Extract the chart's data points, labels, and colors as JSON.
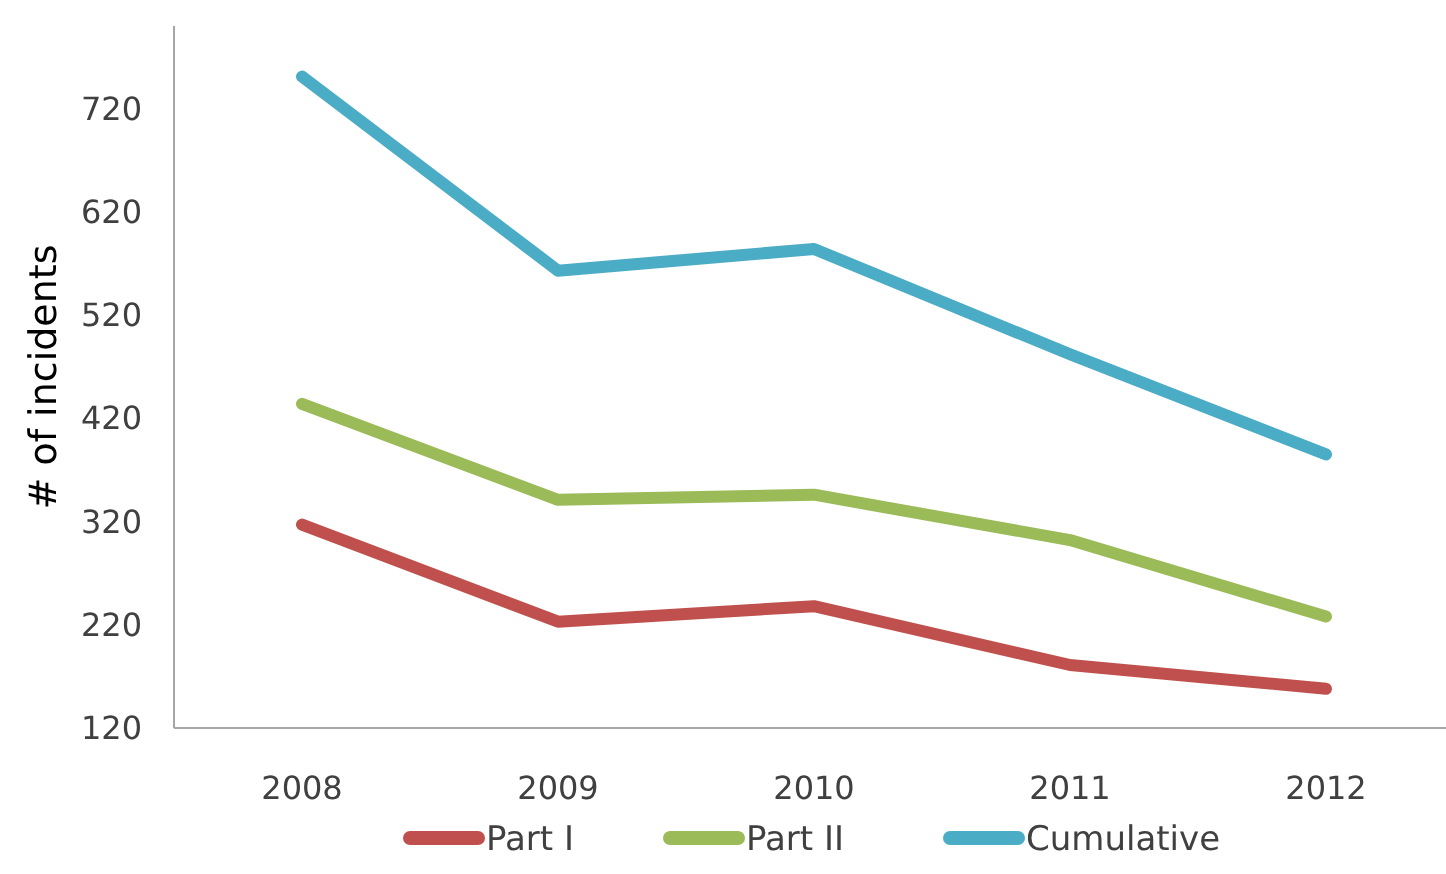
{
  "chart_data": {
    "type": "line",
    "ylabel": "# of incidents",
    "categories": [
      "2008",
      "2009",
      "2010",
      "2011",
      "2012"
    ],
    "series": [
      {
        "name": "Part I",
        "color": "#c0504d",
        "values": [
          317,
          223,
          238,
          181,
          158
        ]
      },
      {
        "name": "Part II",
        "color": "#9bbb59",
        "values": [
          434,
          341,
          346,
          302,
          228
        ]
      },
      {
        "name": "Cumulative",
        "color": "#4bacc6",
        "values": [
          751,
          563,
          584,
          482,
          385
        ]
      }
    ],
    "ylim": [
      120,
      800
    ],
    "yticks": [
      120,
      220,
      320,
      420,
      520,
      620,
      720
    ],
    "grid": false,
    "legend": "bottom",
    "marker": "none",
    "line_style": "solid"
  }
}
